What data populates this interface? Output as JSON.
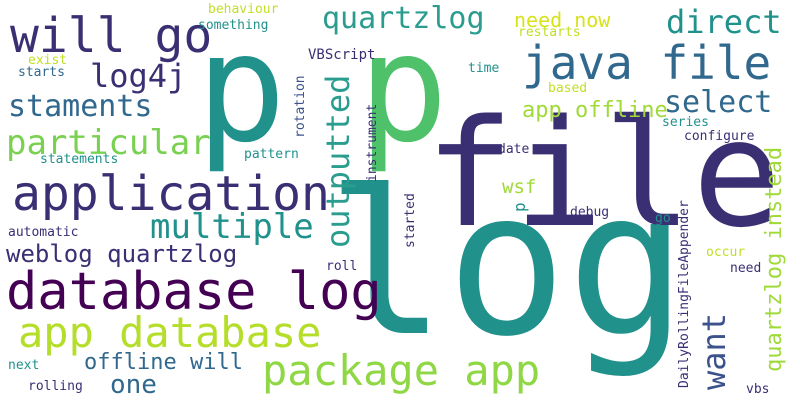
{
  "colors": {
    "background": "#ffffff",
    "palette": [
      "#440154",
      "#3b528b",
      "#21918c",
      "#2a9d8f",
      "#5ec962",
      "#a0da39",
      "#fde725",
      "#b5de2b"
    ]
  },
  "words": {
    "log": "log",
    "file": "file",
    "p1": "p",
    "p2": "p",
    "database_log": "database log",
    "application": "application",
    "app_database": "app database",
    "package_app": "package app",
    "java_file": "java file",
    "will_go": "will go",
    "quartzlog": "quartzlog",
    "direct": "direct",
    "need_now": "need now",
    "log4j": "log4j",
    "staments": "staments",
    "particular": "particular",
    "select": "select",
    "app_offline": "app offline",
    "multiple": "multiple",
    "outputted": "outputted",
    "want": "want",
    "weblog_quartzlog": "weblog quartzlog",
    "offline_will": "offline will",
    "one": "one",
    "quartzlog_instead": "quartzlog instead",
    "behaviour": "behaviour",
    "something": "something",
    "restarts": "restarts",
    "exist": "exist",
    "starts": "starts",
    "vbscript": "VBScript",
    "time": "time",
    "based": "based",
    "series": "series",
    "configure": "configure",
    "statements": "statements",
    "pattern": "pattern",
    "rotation": "rotation",
    "instrument": "instrument",
    "date": "date",
    "wsf": "wsf",
    "p_small": "p",
    "debug": "debug",
    "go": "go",
    "automatic": "automatic",
    "started": "started",
    "dailyrolling": "DailyRollingFileAppender",
    "roll": "roll",
    "occur": "occur",
    "need": "need",
    "next": "next",
    "rolling": "rolling",
    "vbs": "vbs"
  }
}
